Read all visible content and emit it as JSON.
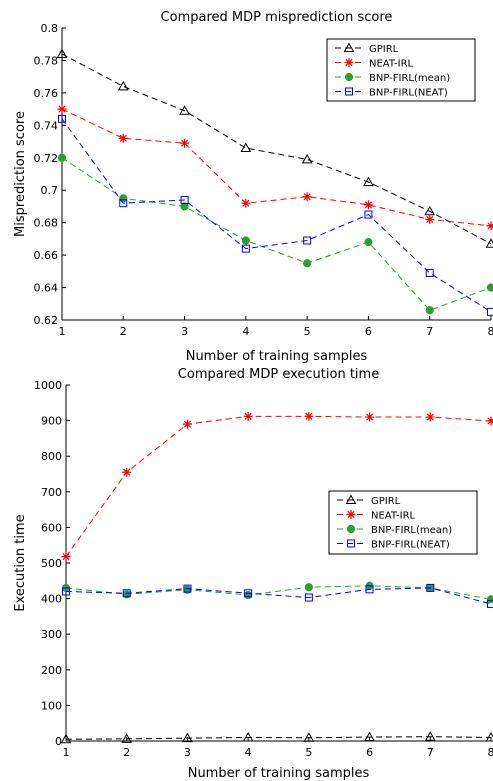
{
  "chart_data": [
    {
      "type": "line",
      "title": "Compared MDP misprediction score",
      "xlabel": "Number of training samples",
      "ylabel": "Misprediction score",
      "x": [
        1,
        2,
        3,
        4,
        5,
        6,
        7,
        8
      ],
      "xlim": [
        1,
        8
      ],
      "ylim": [
        0.62,
        0.8
      ],
      "yticks": [
        0.62,
        0.64,
        0.66,
        0.68,
        0.7,
        0.72,
        0.74,
        0.76,
        0.78,
        0.8
      ],
      "ytick_labels": [
        "0.62",
        "0.64",
        "0.66",
        "0.68",
        "0.7",
        "0.72",
        "0.74",
        "0.76",
        "0.78",
        "0.8"
      ],
      "xtick_labels": [
        "1",
        "2",
        "3",
        "4",
        "5",
        "6",
        "7",
        "8"
      ],
      "grid": false,
      "legend_position": "top-right",
      "series": [
        {
          "name": "GPIRL",
          "color": "#000000",
          "marker": "triangle",
          "values": [
            0.784,
            0.764,
            0.749,
            0.726,
            0.719,
            0.705,
            0.687,
            0.667
          ]
        },
        {
          "name": "NEAT-IRL",
          "color": "#ff0000",
          "marker": "star",
          "values": [
            0.75,
            0.732,
            0.729,
            0.692,
            0.696,
            0.691,
            0.682,
            0.678
          ]
        },
        {
          "name": "BNP-FIRL(mean)",
          "color": "#2ca02c",
          "marker": "circle",
          "values": [
            0.72,
            0.695,
            0.69,
            0.669,
            0.655,
            0.668,
            0.626,
            0.64
          ]
        },
        {
          "name": "BNP-FIRL(NEAT)",
          "color": "#0000ff",
          "marker": "square",
          "values": [
            0.744,
            0.692,
            0.694,
            0.664,
            0.669,
            0.685,
            0.649,
            0.625
          ]
        }
      ]
    },
    {
      "type": "line",
      "title": "Compared MDP execution time",
      "xlabel": "Number of training samples",
      "ylabel": "Execution time",
      "x": [
        1,
        2,
        3,
        4,
        5,
        6,
        7,
        8
      ],
      "xlim": [
        1,
        8
      ],
      "ylim": [
        0,
        1000
      ],
      "yticks": [
        0,
        100,
        200,
        300,
        400,
        500,
        600,
        700,
        800,
        900,
        1000
      ],
      "ytick_labels": [
        "0",
        "100",
        "200",
        "300",
        "400",
        "500",
        "600",
        "700",
        "800",
        "900",
        "1000"
      ],
      "xtick_labels": [
        "1",
        "2",
        "3",
        "4",
        "5",
        "6",
        "7",
        "8"
      ],
      "grid": false,
      "legend_position": "top-right",
      "series": [
        {
          "name": "GPIRL",
          "color": "#000000",
          "marker": "triangle",
          "values": [
            5,
            6,
            8,
            10,
            9,
            11,
            12,
            10
          ]
        },
        {
          "name": "NEAT-IRL",
          "color": "#ff0000",
          "marker": "star",
          "values": [
            518,
            755,
            890,
            912,
            912,
            910,
            910,
            899
          ]
        },
        {
          "name": "BNP-FIRL(mean)",
          "color": "#2ca02c",
          "marker": "circle",
          "values": [
            430,
            412,
            425,
            410,
            432,
            436,
            430,
            398
          ]
        },
        {
          "name": "BNP-FIRL(NEAT)",
          "color": "#0000ff",
          "marker": "square",
          "values": [
            420,
            415,
            428,
            415,
            403,
            426,
            430,
            385
          ]
        }
      ]
    }
  ]
}
